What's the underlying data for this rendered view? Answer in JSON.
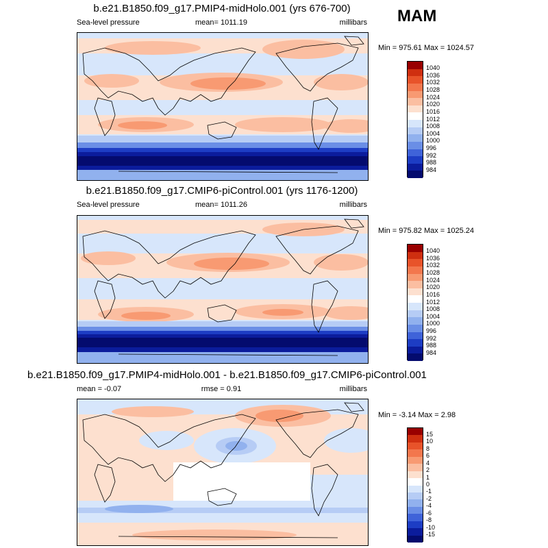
{
  "season": "MAM",
  "panels": [
    {
      "title": "b.e21.B1850.f09_g17.PMIP4-midHolo.001 (yrs 676-700)",
      "left": "Sea-level pressure",
      "center": "mean= 1011.19",
      "units": "millibars",
      "minmax": "Min = 975.61 Max = 1024.57",
      "levels": [
        "1040",
        "1036",
        "1032",
        "1028",
        "1024",
        "1020",
        "1016",
        "1012",
        "1008",
        "1004",
        "1000",
        "996",
        "992",
        "988",
        "984"
      ],
      "colors": [
        "#990000",
        "#cf2f10",
        "#e8532a",
        "#f3774d",
        "#f89a72",
        "#fbbea1",
        "#fde0cf",
        "#ffffff",
        "#d7e6fb",
        "#b6ccf5",
        "#91b1ee",
        "#6a8ee6",
        "#3f63d9",
        "#1d3dc4",
        "#0b1c9c",
        "#040b6e"
      ]
    },
    {
      "title": "b.e21.B1850.f09_g17.CMIP6-piControl.001 (yrs 1176-1200)",
      "left": "Sea-level pressure",
      "center": "mean= 1011.26",
      "units": "millibars",
      "minmax": "Min = 975.82 Max = 1025.24",
      "levels": [
        "1040",
        "1036",
        "1032",
        "1028",
        "1024",
        "1020",
        "1016",
        "1012",
        "1008",
        "1004",
        "1000",
        "996",
        "992",
        "988",
        "984"
      ],
      "colors": [
        "#990000",
        "#cf2f10",
        "#e8532a",
        "#f3774d",
        "#f89a72",
        "#fbbea1",
        "#fde0cf",
        "#ffffff",
        "#d7e6fb",
        "#b6ccf5",
        "#91b1ee",
        "#6a8ee6",
        "#3f63d9",
        "#1d3dc4",
        "#0b1c9c",
        "#040b6e"
      ]
    },
    {
      "title": "b.e21.B1850.f09_g17.PMIP4-midHolo.001 - b.e21.B1850.f09_g17.CMIP6-piControl.001",
      "left": "mean =  -0.07",
      "center": "rmse =   0.91",
      "units": "millibars",
      "minmax": "Min =  -3.14 Max =   2.98",
      "levels": [
        "15",
        "10",
        "8",
        "6",
        "4",
        "2",
        "1",
        "0",
        "-1",
        "-2",
        "-4",
        "-6",
        "-8",
        "-10",
        "-15"
      ],
      "colors": [
        "#990000",
        "#cf2f10",
        "#e8532a",
        "#f3774d",
        "#f89a72",
        "#fbbea1",
        "#fde0cf",
        "#ffffff",
        "#d7e6fb",
        "#b6ccf5",
        "#91b1ee",
        "#6a8ee6",
        "#3f63d9",
        "#1d3dc4",
        "#0b1c9c",
        "#040b6e"
      ]
    }
  ]
}
